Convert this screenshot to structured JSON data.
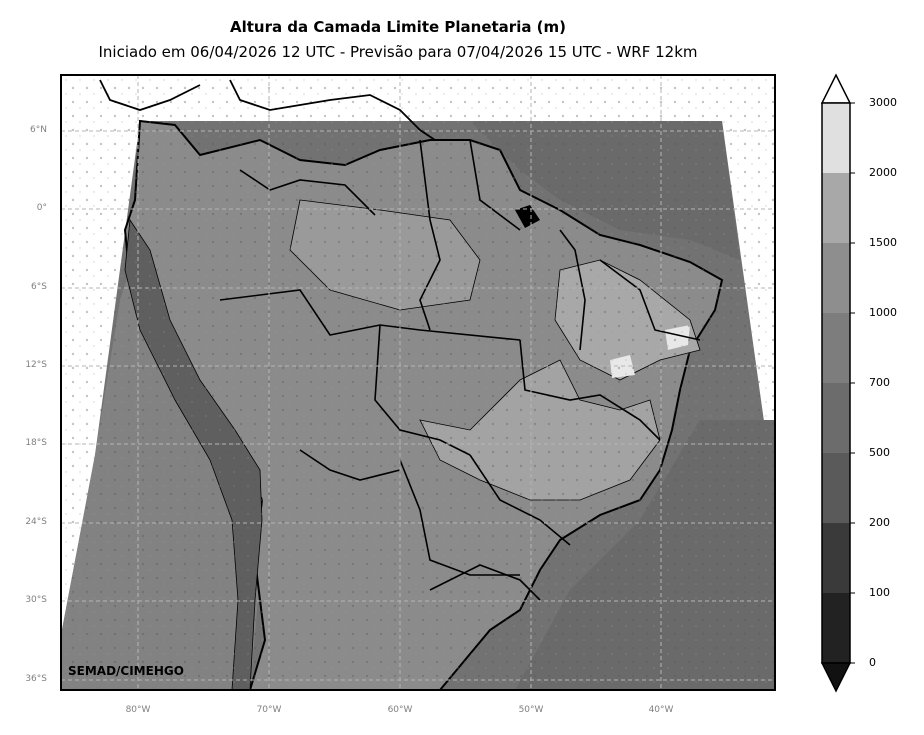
{
  "header": {
    "title": "Altura da Camada Limite Planetaria (m)",
    "subtitle": "Iniciado em 06/04/2026 12 UTC - Previsão para 07/04/2026 15 UTC - WRF 12km"
  },
  "credit": "SEMAD/CIMEHGO",
  "lat_labels": [
    "6°N",
    "0°",
    "6°S",
    "12°S",
    "18°S",
    "24°S",
    "30°S",
    "36°S"
  ],
  "lon_labels": [
    "80°W",
    "70°W",
    "60°W",
    "50°W",
    "40°W"
  ],
  "colorbar": {
    "labels": [
      "3000",
      "2000",
      "1500",
      "1000",
      "700",
      "500",
      "200",
      "100",
      "0"
    ],
    "bin_colors": [
      "#e0e0e0",
      "#a8a8a8",
      "#8e8e8e",
      "#7d7d7d",
      "#6c6c6c",
      "#5a5a5a",
      "#3a3a3a",
      "#222222",
      "#111111"
    ],
    "extend": "both"
  },
  "map": {
    "domain": "South America / Brazil",
    "field_colors": {
      "ocean_atlantic": "#6e6e6e",
      "ocean_pacific": "#808080",
      "land_mid": "#8a8a8a",
      "land_high": "#a5a5a5",
      "outside": "#ffffff"
    },
    "gridlines": true
  }
}
